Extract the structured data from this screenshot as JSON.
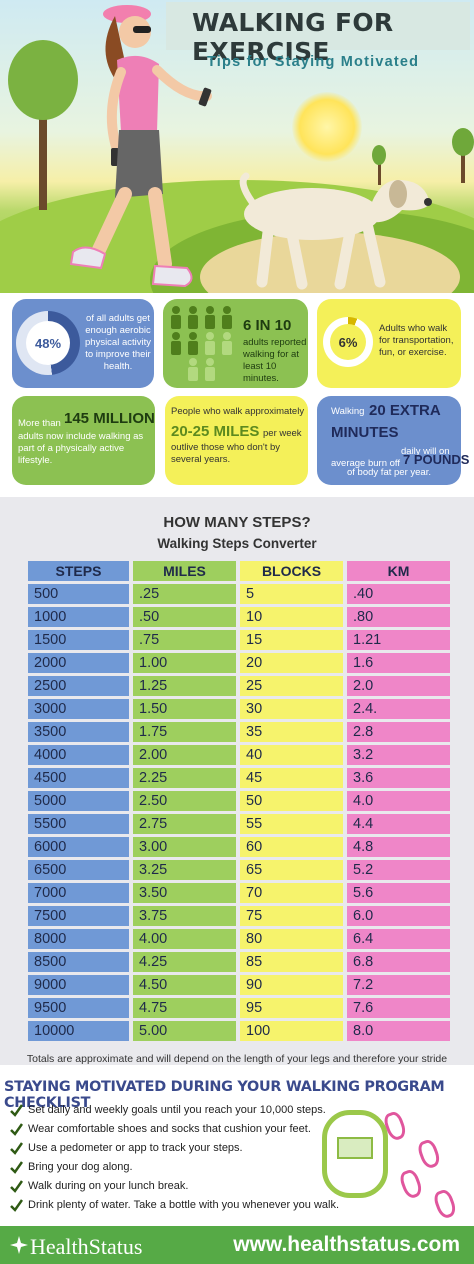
{
  "header": {
    "title": "WALKING FOR EXERCISE",
    "subtitle": "Tips for Staying Motivated"
  },
  "stats": {
    "s1": {
      "value": "48%",
      "fraction": 0.48,
      "text": "of all adults get enough aerobic physical activity to improve their health."
    },
    "s2": {
      "value": "6 IN 10",
      "text": "adults reported walking for at least 10 minutes.",
      "figures_total": 10,
      "figures_highlighted": 6
    },
    "s3": {
      "value": "6%",
      "fraction": 0.06,
      "text": "Adults who walk for transportation, fun, or exercise."
    },
    "s4": {
      "pre": "More than",
      "value": "145 MILLION",
      "text": "adults now include walking as part of a physically active lifestyle."
    },
    "s5": {
      "pre": "People who walk approximately",
      "value": "20-25 MILES",
      "post": "per week",
      "text": "outlive those who don't by several years."
    },
    "s6": {
      "pre": "Walking",
      "value1": "20 EXTRA MINUTES",
      "mid": "daily will on average burn off",
      "value2": "7 POUNDS",
      "post": "of body fat per year."
    }
  },
  "converter": {
    "title": "HOW MANY STEPS?",
    "subtitle": "Walking Steps Converter",
    "headers": [
      "STEPS",
      "MILES",
      "BLOCKS",
      "KM"
    ],
    "rows": [
      [
        "500",
        ".25",
        "5",
        ".40"
      ],
      [
        "1000",
        ".50",
        "10",
        ".80"
      ],
      [
        "1500",
        ".75",
        "15",
        "1.21"
      ],
      [
        "2000",
        "1.00",
        "20",
        "1.6"
      ],
      [
        "2500",
        "1.25",
        "25",
        "2.0"
      ],
      [
        "3000",
        "1.50",
        "30",
        "2.4."
      ],
      [
        "3500",
        "1.75",
        "35",
        "2.8"
      ],
      [
        "4000",
        "2.00",
        "40",
        "3.2"
      ],
      [
        "4500",
        "2.25",
        "45",
        "3.6"
      ],
      [
        "5000",
        "2.50",
        "50",
        "4.0"
      ],
      [
        "5500",
        "2.75",
        "55",
        "4.4"
      ],
      [
        "6000",
        "3.00",
        "60",
        "4.8"
      ],
      [
        "6500",
        "3.25",
        "65",
        "5.2"
      ],
      [
        "7000",
        "3.50",
        "70",
        "5.6"
      ],
      [
        "7500",
        "3.75",
        "75",
        "6.0"
      ],
      [
        "8000",
        "4.00",
        "80",
        "6.4"
      ],
      [
        "8500",
        "4.25",
        "85",
        "6.8"
      ],
      [
        "9000",
        "4.50",
        "90",
        "7.2"
      ],
      [
        "9500",
        "4.75",
        "95",
        "7.6"
      ],
      [
        "10000",
        "5.00",
        "100",
        "8.0"
      ]
    ],
    "note": "Totals are approximate and will depend on the length of your legs and therefore your stride"
  },
  "checklist": {
    "title": "STAYING MOTIVATED DURING YOUR WALKING PROGRAM CHECKLIST",
    "items": [
      "Set daily and weekly goals until you reach your 10,000 steps.",
      "Wear comfortable shoes and socks that cushion your feet.",
      "Use a pedometer or app to track your steps.",
      "Bring your dog along.",
      "Walk during on your lunch break.",
      "Drink plenty of water. Take a bottle with you whenever you walk."
    ]
  },
  "footer": {
    "logo": "HealthStatus",
    "url": "www.healthstatus.com"
  },
  "colors": {
    "blue": "#6c8fcd",
    "green": "#8cc152",
    "yellow": "#f4f059",
    "pink": "#ef86c8",
    "footer_green": "#56aa46"
  }
}
